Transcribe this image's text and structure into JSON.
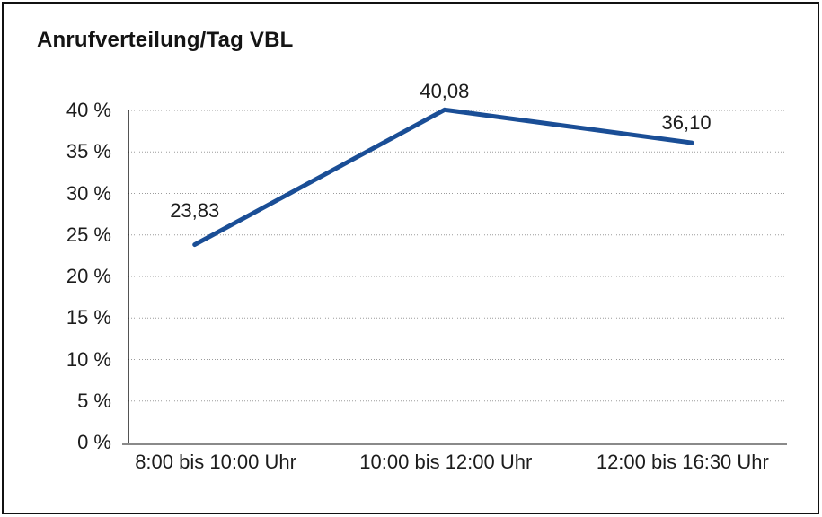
{
  "window": {
    "background_color": "#ffffff",
    "border_color": "#111111"
  },
  "chart_data": {
    "type": "line",
    "title": "Anrufverteilung/Tag VBL",
    "categories": [
      "8:00 bis 10:00 Uhr",
      "10:00 bis 12:00 Uhr",
      "12:00 bis 16:30 Uhr"
    ],
    "values": [
      23.83,
      40.08,
      36.1
    ],
    "value_labels": [
      "23,83",
      "40,08",
      "36,10"
    ],
    "xlabel": "",
    "ylabel": "",
    "ylim": [
      0,
      40
    ],
    "ytick_step": 5,
    "ytick_labels": [
      "0 %",
      "5 %",
      "10 %",
      "15 %",
      "20 %",
      "25 %",
      "30 %",
      "35 %",
      "40 %"
    ],
    "ytick_suffix": "%",
    "grid": "horizontal-dotted",
    "legend": "none",
    "line_color": "#1a4e96",
    "line_width": 5,
    "gridline_color": "#9b9b9b",
    "yaxis_color": "#1a1a1a",
    "xaxis_color": "#8a8a8a",
    "text_color": "#1c1c1c"
  }
}
